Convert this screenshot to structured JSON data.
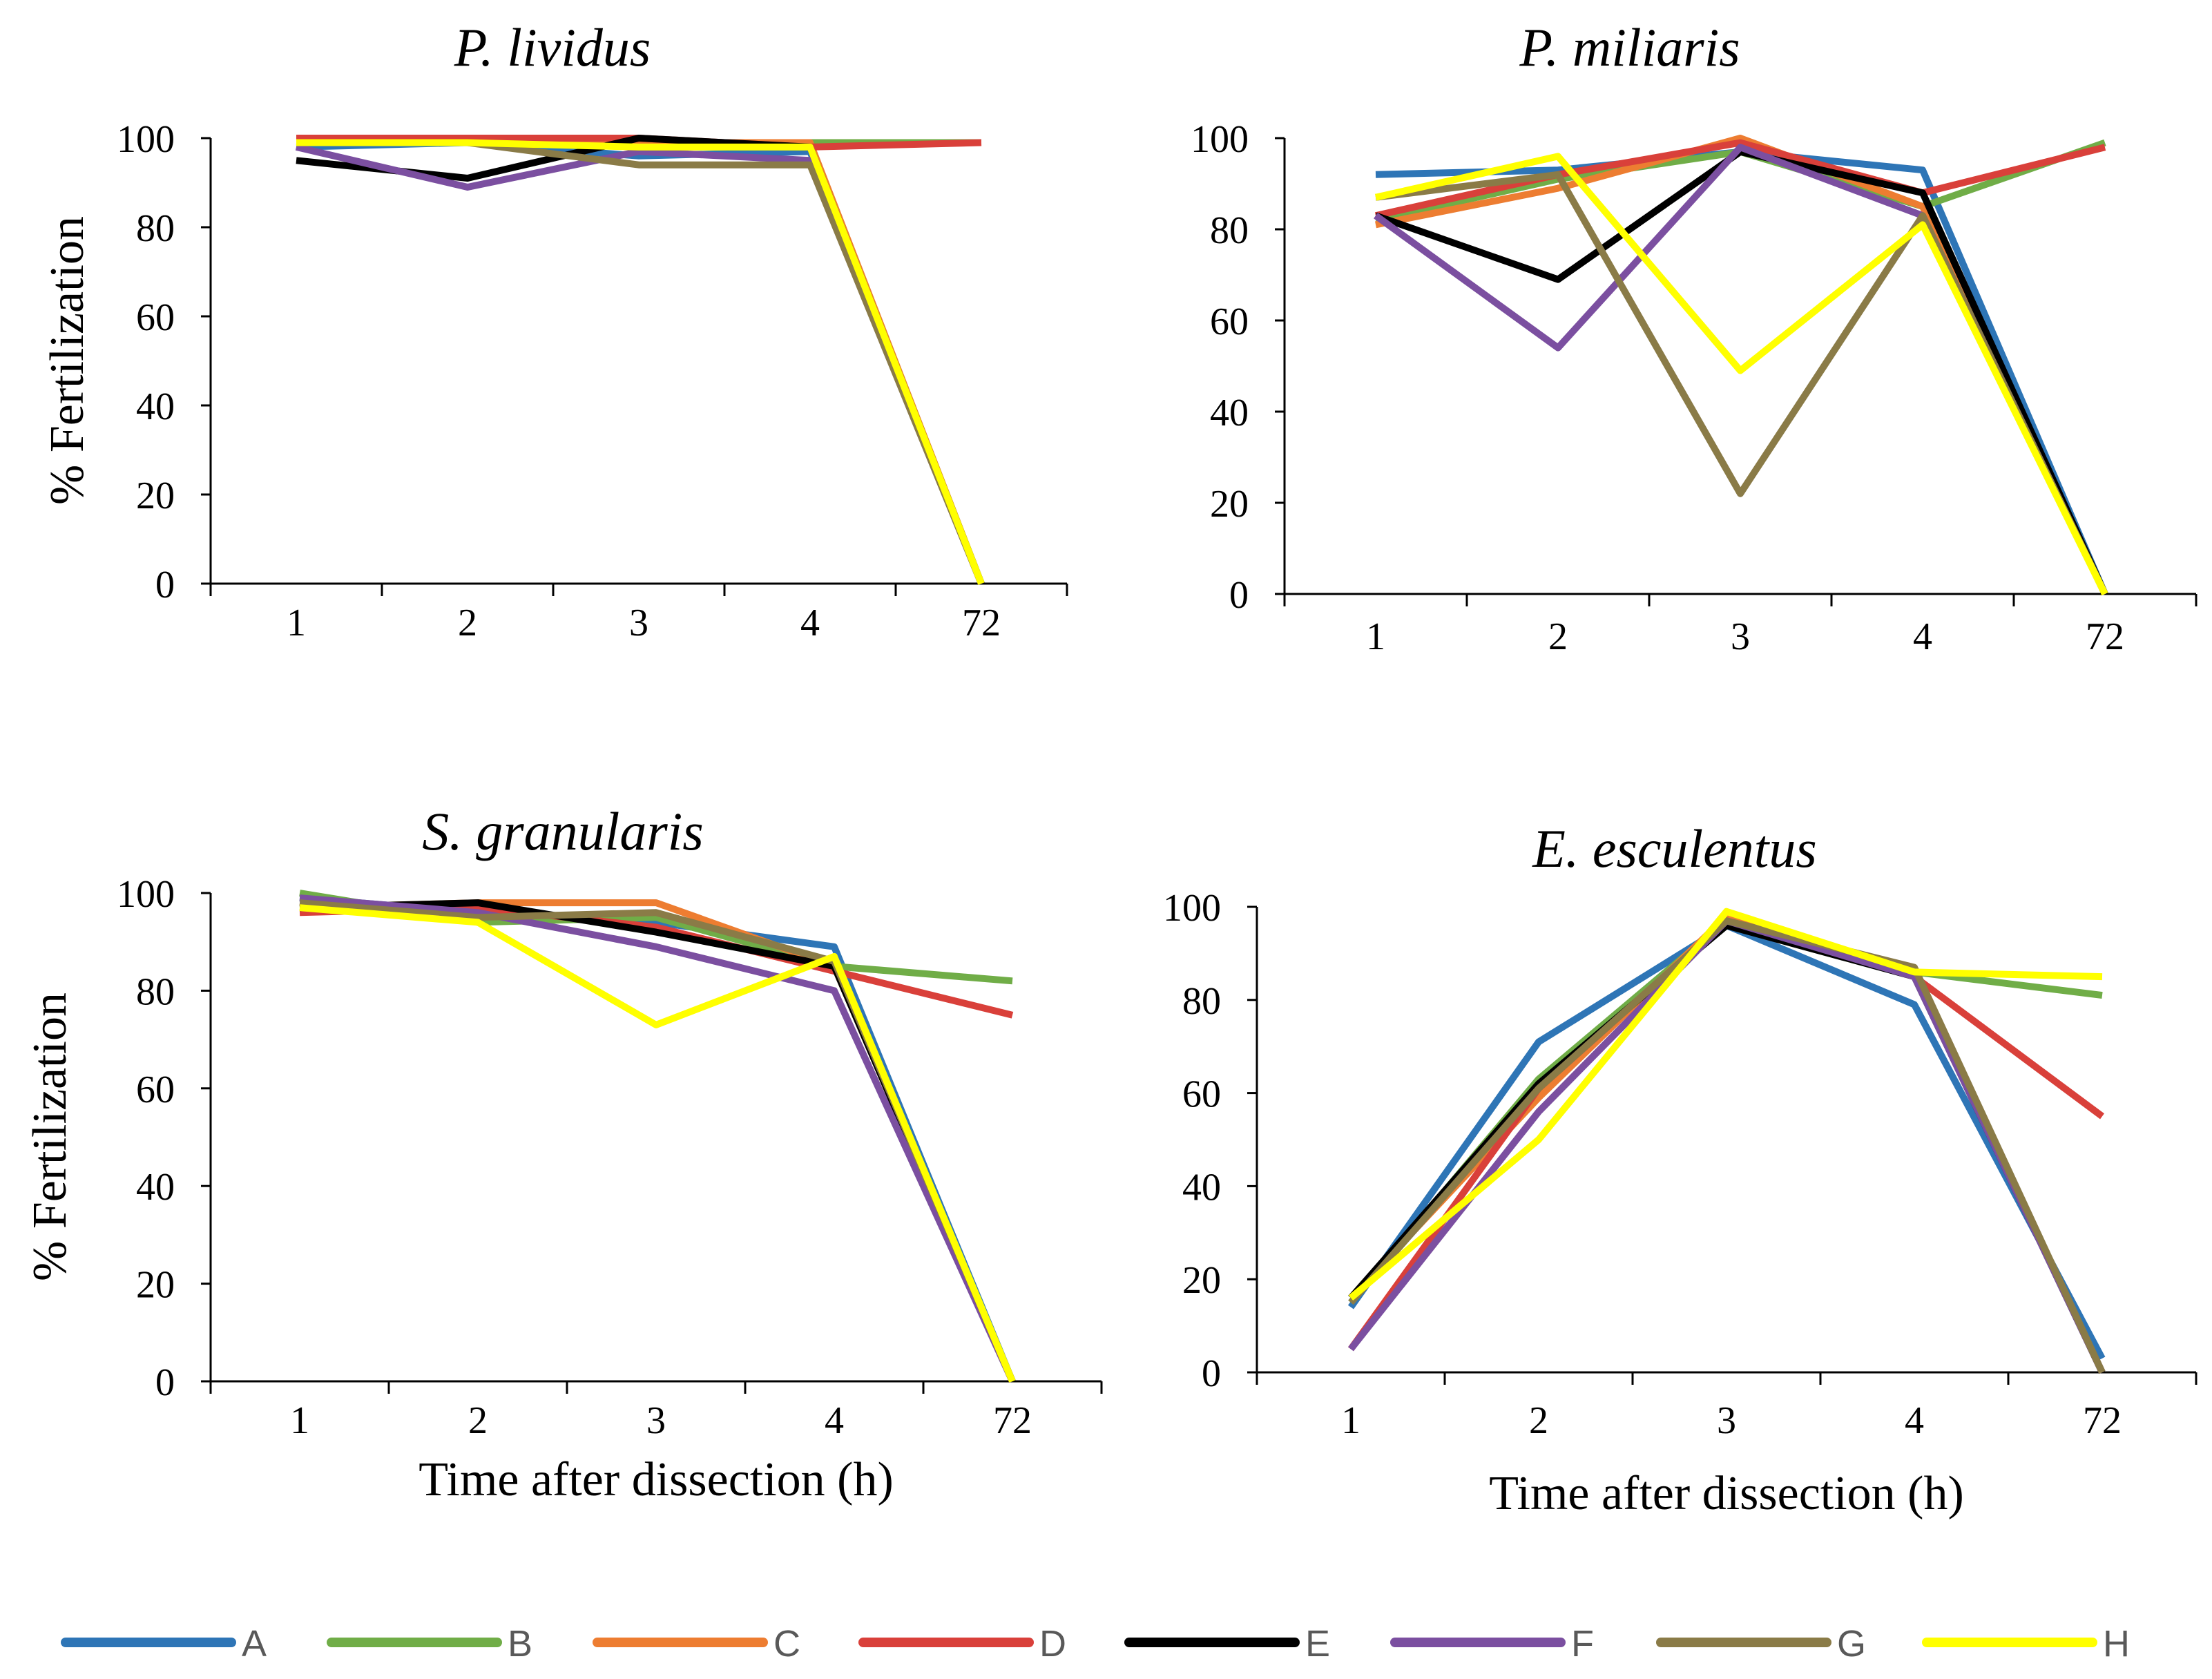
{
  "chart_data": [
    {
      "type": "line",
      "title": "P. lividus",
      "xlabel": "",
      "ylabel": "% Fertilization",
      "categories": [
        "1",
        "2",
        "3",
        "4",
        "72"
      ],
      "y_ticks": [
        "0",
        "20",
        "40",
        "60",
        "80",
        "100"
      ],
      "ylim": [
        0,
        100
      ],
      "series": [
        {
          "name": "A",
          "values": [
            98,
            99,
            96,
            97,
            0
          ]
        },
        {
          "name": "B",
          "values": [
            99,
            99,
            99,
            99,
            99
          ]
        },
        {
          "name": "C",
          "values": [
            99,
            99,
            99,
            99,
            0
          ]
        },
        {
          "name": "D",
          "values": [
            100,
            100,
            100,
            98,
            99
          ]
        },
        {
          "name": "E",
          "values": [
            95,
            91,
            100,
            98,
            0
          ]
        },
        {
          "name": "F",
          "values": [
            98,
            89,
            97,
            95,
            0
          ]
        },
        {
          "name": "G",
          "values": [
            99,
            99,
            94,
            94,
            0
          ]
        },
        {
          "name": "H",
          "values": [
            99,
            99,
            98,
            98,
            0
          ]
        }
      ]
    },
    {
      "type": "line",
      "title": "P. miliaris",
      "xlabel": "",
      "ylabel": "",
      "categories": [
        "1",
        "2",
        "3",
        "4",
        "72"
      ],
      "y_ticks": [
        "0",
        "20",
        "40",
        "60",
        "80",
        "100"
      ],
      "ylim": [
        0,
        100
      ],
      "series": [
        {
          "name": "A",
          "values": [
            92,
            93,
            97,
            93,
            0
          ]
        },
        {
          "name": "B",
          "values": [
            82,
            91,
            97,
            85,
            99
          ]
        },
        {
          "name": "C",
          "values": [
            81,
            89,
            100,
            85,
            0
          ]
        },
        {
          "name": "D",
          "values": [
            83,
            92,
            99,
            88,
            98
          ]
        },
        {
          "name": "E",
          "values": [
            83,
            69,
            97,
            88,
            0
          ]
        },
        {
          "name": "F",
          "values": [
            83,
            54,
            98,
            83,
            0
          ]
        },
        {
          "name": "G",
          "values": [
            87,
            92,
            22,
            83,
            0
          ]
        },
        {
          "name": "H",
          "values": [
            87,
            96,
            49,
            81,
            0
          ]
        }
      ]
    },
    {
      "type": "line",
      "title": "S. granularis",
      "xlabel": "Time after dissection (h)",
      "ylabel": "% Fertilization",
      "categories": [
        "1",
        "2",
        "3",
        "4",
        "72"
      ],
      "y_ticks": [
        "0",
        "20",
        "40",
        "60",
        "80",
        "100"
      ],
      "ylim": [
        0,
        100
      ],
      "series": [
        {
          "name": "A",
          "values": [
            99,
            96,
            94,
            89,
            0
          ]
        },
        {
          "name": "B",
          "values": [
            100,
            94,
            95,
            85,
            82
          ]
        },
        {
          "name": "C",
          "values": [
            97,
            98,
            98,
            85,
            0
          ]
        },
        {
          "name": "D",
          "values": [
            96,
            97,
            93,
            84,
            75
          ]
        },
        {
          "name": "E",
          "values": [
            97,
            98,
            92,
            85,
            0
          ]
        },
        {
          "name": "F",
          "values": [
            99,
            96,
            89,
            80,
            0
          ]
        },
        {
          "name": "G",
          "values": [
            98,
            95,
            96,
            86,
            0
          ]
        },
        {
          "name": "H",
          "values": [
            97,
            94,
            73,
            87,
            0
          ]
        }
      ]
    },
    {
      "type": "line",
      "title": "E. esculentus",
      "xlabel": "Time after dissection (h)",
      "ylabel": "",
      "categories": [
        "1",
        "2",
        "3",
        "4",
        "72"
      ],
      "y_ticks": [
        "0",
        "20",
        "40",
        "60",
        "80",
        "100"
      ],
      "ylim": [
        0,
        100
      ],
      "series": [
        {
          "name": "A",
          "values": [
            14,
            71,
            96,
            79,
            3
          ]
        },
        {
          "name": "B",
          "values": [
            15,
            63,
            97,
            86,
            81
          ]
        },
        {
          "name": "C",
          "values": [
            16,
            59,
            98,
            86,
            0
          ]
        },
        {
          "name": "D",
          "values": [
            5,
            61,
            97,
            85,
            55
          ]
        },
        {
          "name": "E",
          "values": [
            16,
            62,
            96,
            85,
            0
          ]
        },
        {
          "name": "F",
          "values": [
            5,
            56,
            97,
            85,
            0
          ]
        },
        {
          "name": "G",
          "values": [
            15,
            61,
            97,
            87,
            0
          ]
        },
        {
          "name": "H",
          "values": [
            16,
            50,
            99,
            86,
            85
          ]
        }
      ]
    }
  ],
  "legend": [
    {
      "name": "A",
      "color": "#2E75B6"
    },
    {
      "name": "B",
      "color": "#70AD47"
    },
    {
      "name": "C",
      "color": "#ED7D31"
    },
    {
      "name": "D",
      "color": "#D9403A"
    },
    {
      "name": "E",
      "color": "#000000"
    },
    {
      "name": "F",
      "color": "#7B4FA0"
    },
    {
      "name": "G",
      "color": "#8A7B47"
    },
    {
      "name": "H",
      "color": "#FFFF00"
    }
  ]
}
